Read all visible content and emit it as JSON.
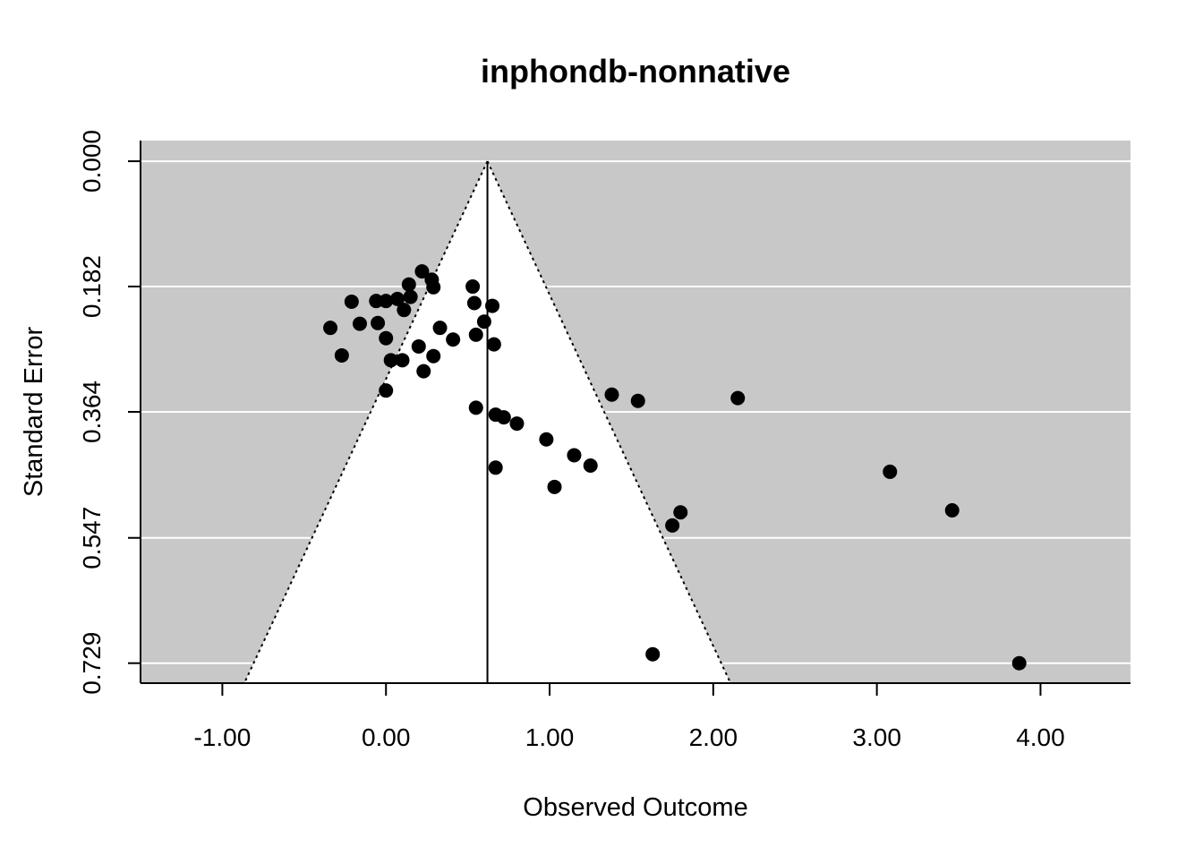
{
  "chart_data": {
    "type": "scatter",
    "subtype": "funnel-plot",
    "title": "inphondb-nonnative",
    "xlabel": "Observed Outcome",
    "ylabel": "Standard Error",
    "xlim": [
      -1.5,
      4.55
    ],
    "ylim": [
      0.758,
      -0.03
    ],
    "y_axis_reversed": true,
    "x_ticks": [
      -1,
      0,
      1,
      2,
      3,
      4
    ],
    "x_tick_labels": [
      "-1.00",
      "0.00",
      "1.00",
      "2.00",
      "3.00",
      "4.00"
    ],
    "y_ticks": [
      0,
      0.182,
      0.364,
      0.547,
      0.729
    ],
    "y_tick_labels": [
      "0.000",
      "0.182",
      "0.364",
      "0.547",
      "0.729"
    ],
    "grid": true,
    "background_color": "#c8c8c8",
    "funnel_fill": "#ffffff",
    "grid_color": "#ffffff",
    "point_color": "#000000",
    "summary_estimate": 0.62,
    "funnel_bottom_se": 0.758,
    "funnel_z": 1.96,
    "points": [
      {
        "x": 0.22,
        "y": 0.16
      },
      {
        "x": 0.28,
        "y": 0.172
      },
      {
        "x": 0.29,
        "y": 0.183
      },
      {
        "x": 0.14,
        "y": 0.179
      },
      {
        "x": 0.15,
        "y": 0.197
      },
      {
        "x": -0.21,
        "y": 0.204
      },
      {
        "x": -0.06,
        "y": 0.203
      },
      {
        "x": 0.0,
        "y": 0.203
      },
      {
        "x": 0.07,
        "y": 0.2
      },
      {
        "x": 0.11,
        "y": 0.216
      },
      {
        "x": 0.53,
        "y": 0.182
      },
      {
        "x": 0.54,
        "y": 0.206
      },
      {
        "x": 0.65,
        "y": 0.21
      },
      {
        "x": 0.6,
        "y": 0.233
      },
      {
        "x": -0.34,
        "y": 0.242
      },
      {
        "x": -0.16,
        "y": 0.236
      },
      {
        "x": -0.05,
        "y": 0.235
      },
      {
        "x": 0.0,
        "y": 0.257
      },
      {
        "x": 0.33,
        "y": 0.242
      },
      {
        "x": 0.41,
        "y": 0.259
      },
      {
        "x": 0.55,
        "y": 0.252
      },
      {
        "x": 0.66,
        "y": 0.266
      },
      {
        "x": 0.2,
        "y": 0.269
      },
      {
        "x": -0.27,
        "y": 0.282
      },
      {
        "x": 0.03,
        "y": 0.289
      },
      {
        "x": 0.1,
        "y": 0.289
      },
      {
        "x": 0.29,
        "y": 0.283
      },
      {
        "x": 0.23,
        "y": 0.305
      },
      {
        "x": 0.0,
        "y": 0.333
      },
      {
        "x": 1.38,
        "y": 0.339
      },
      {
        "x": 1.54,
        "y": 0.348
      },
      {
        "x": 2.15,
        "y": 0.344
      },
      {
        "x": 0.55,
        "y": 0.358
      },
      {
        "x": 0.67,
        "y": 0.368
      },
      {
        "x": 0.72,
        "y": 0.372
      },
      {
        "x": 0.8,
        "y": 0.381
      },
      {
        "x": 0.98,
        "y": 0.404
      },
      {
        "x": 1.15,
        "y": 0.427
      },
      {
        "x": 1.25,
        "y": 0.442
      },
      {
        "x": 0.67,
        "y": 0.445
      },
      {
        "x": 1.03,
        "y": 0.473
      },
      {
        "x": 3.08,
        "y": 0.451
      },
      {
        "x": 3.46,
        "y": 0.507
      },
      {
        "x": 1.8,
        "y": 0.51
      },
      {
        "x": 1.75,
        "y": 0.529
      },
      {
        "x": 1.63,
        "y": 0.716
      },
      {
        "x": 3.87,
        "y": 0.729
      }
    ]
  }
}
